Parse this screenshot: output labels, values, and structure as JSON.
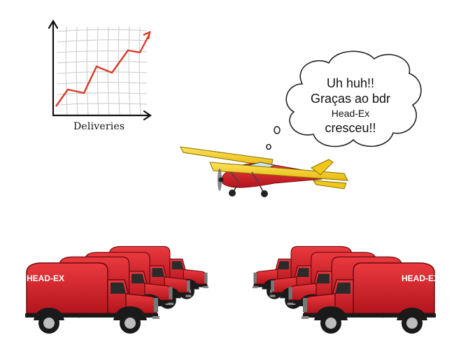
{
  "chart": {
    "xlabel": "Deliveries",
    "trend_color": "#d93a2b"
  },
  "thought_bubble": {
    "line1": "Uh huh!!",
    "line2": "Graças ao bdr",
    "line3": "Head-Ex",
    "line4": "cresceu!!"
  },
  "trucks": {
    "brand_label": "HEAD-EX",
    "body_color": "#d6222b"
  },
  "airplane": {
    "wing_color": "#f4d21a",
    "body_color": "#d6222b"
  }
}
